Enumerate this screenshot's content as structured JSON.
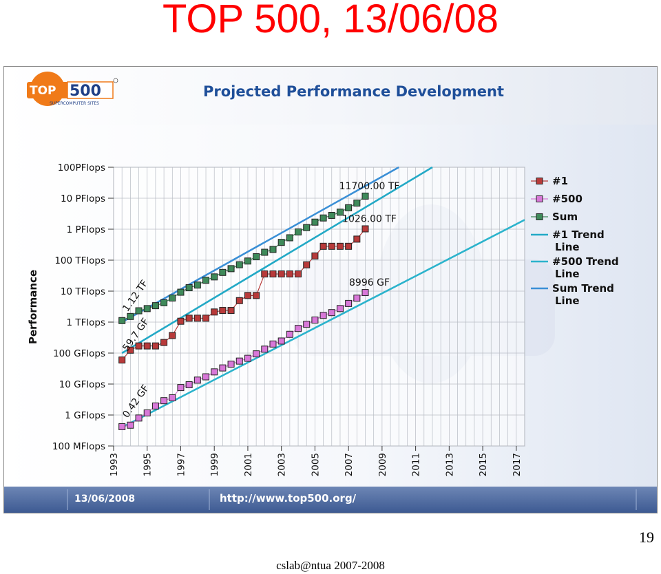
{
  "slide": {
    "title": "TOP 500, 13/06/08",
    "page_number": "19",
    "footer": "cslab@ntua 2007-2008"
  },
  "header": {
    "logo_text_top": "TOP",
    "logo_text_num": "500",
    "logo_subtitle": "SUPERCOMPUTER SITES",
    "chart_title": "Projected Performance Development"
  },
  "bottom_bar": {
    "date": "13/06/2008",
    "url": "http://www.top500.org/"
  },
  "colors": {
    "title_red": "#ff0000",
    "series_1": "#b83a3a",
    "series_500": "#d878d8",
    "series_sum": "#3f8a5a",
    "trend_500": "#2bb3cc",
    "trend_1": "#22a9c6",
    "trend_sum": "#3a8fd6",
    "logo_orange": "#f07a18"
  },
  "chart_data": {
    "type": "line",
    "title": "Projected Performance Development",
    "ylabel": "Performance",
    "xlabel": "",
    "y_scale": "log",
    "y_ticks": [
      "100 MFlops",
      "1 GFlops",
      "10 GFlops",
      "100 GFlops",
      "1 TFlops",
      "10 TFlops",
      "100 TFlops",
      "1 PFlops",
      "10 PFlops",
      "100PFlops"
    ],
    "x_ticks": [
      "1993",
      "1995",
      "1997",
      "1999",
      "2001",
      "2003",
      "2005",
      "2007",
      "2009",
      "2011",
      "2013",
      "2015",
      "2017"
    ],
    "xlim": [
      1993,
      2017.5
    ],
    "ylim_gflops": [
      0.1,
      100000000
    ],
    "grid": true,
    "legend_position": "right",
    "x": [
      1993.5,
      1994.0,
      1994.5,
      1995.0,
      1995.5,
      1996.0,
      1996.5,
      1997.0,
      1997.5,
      1998.0,
      1998.5,
      1999.0,
      1999.5,
      2000.0,
      2000.5,
      2001.0,
      2001.5,
      2002.0,
      2002.5,
      2003.0,
      2003.5,
      2004.0,
      2004.5,
      2005.0,
      2005.5,
      2006.0,
      2006.5,
      2007.0,
      2007.5,
      2008.0
    ],
    "series": [
      {
        "name": "#1",
        "unit": "GFlops",
        "values": [
          59.7,
          124,
          170,
          170,
          170,
          220,
          368,
          1068,
          1338,
          1338,
          1338,
          2121,
          2379,
          2379,
          4938,
          7226,
          7226,
          35860,
          35860,
          35860,
          35860,
          35860,
          70720,
          136800,
          280600,
          280600,
          280600,
          280600,
          478200,
          1026000
        ]
      },
      {
        "name": "#500",
        "unit": "GFlops",
        "values": [
          0.42,
          0.47,
          0.8,
          1.17,
          1.96,
          2.9,
          3.6,
          7.7,
          9.5,
          13.4,
          17.1,
          24.7,
          33.1,
          43.8,
          55.1,
          67.8,
          94.3,
          134,
          196,
          245,
          403,
          624,
          850,
          1166,
          1646,
          2026,
          2737,
          4005,
          5929,
          8996
        ]
      },
      {
        "name": "Sum",
        "unit": "GFlops",
        "values": [
          1120,
          1520,
          2320,
          2730,
          3390,
          4220,
          5990,
          9230,
          12900,
          15700,
          22400,
          28800,
          40200,
          53100,
          71200,
          93800,
          129000,
          180000,
          222000,
          375000,
          528000,
          813000,
          1127000,
          1690000,
          2300000,
          2790000,
          3540000,
          4920000,
          6970000,
          11700000
        ]
      },
      {
        "name": "#1 Trend Line",
        "trend": true,
        "x": [
          1993.5,
          2012.0
        ],
        "values": [
          100,
          100000000
        ]
      },
      {
        "name": "#500 Trend Line",
        "trend": true,
        "x": [
          1993.5,
          2017.5
        ],
        "values": [
          0.4,
          2000000
        ]
      },
      {
        "name": "Sum Trend Line",
        "trend": true,
        "x": [
          1993.5,
          2010.0
        ],
        "values": [
          1000,
          100000000
        ]
      }
    ],
    "annotations": [
      {
        "text": "11700.00 TF",
        "series": "Sum"
      },
      {
        "text": "1026.00 TF",
        "series": "#1"
      },
      {
        "text": "8996 GF",
        "series": "#500"
      },
      {
        "text": "1.12 TF",
        "series": "Sum",
        "rotated": true
      },
      {
        "text": "59.7 GF",
        "series": "#1",
        "rotated": true
      },
      {
        "text": "0.42 GF",
        "series": "#500",
        "rotated": true
      }
    ]
  }
}
